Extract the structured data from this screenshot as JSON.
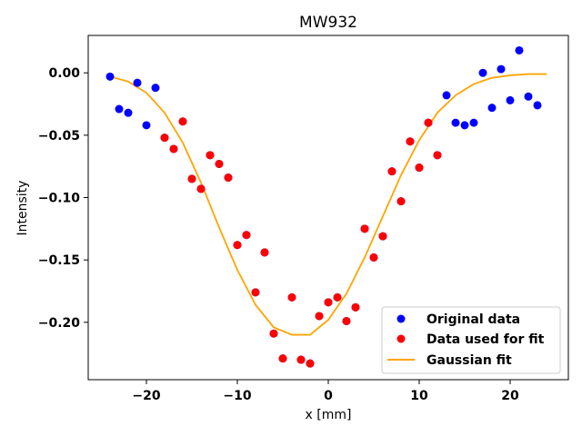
{
  "chart_data": {
    "type": "scatter",
    "title": "MW932",
    "xlabel": "x [mm]",
    "ylabel": "Intensity",
    "xlim": [
      -26.4,
      26.4
    ],
    "ylim": [
      -0.246,
      0.03
    ],
    "xticks": [
      -20,
      -10,
      0,
      10,
      20
    ],
    "xtick_labels": [
      "−20",
      "−10",
      "0",
      "10",
      "20"
    ],
    "yticks": [
      0.0,
      -0.05,
      -0.1,
      -0.15,
      -0.2
    ],
    "ytick_labels": [
      "0.00",
      "−0.05",
      "−0.10",
      "−0.15",
      "−0.20"
    ],
    "legend_position": "lower-right",
    "grid": false,
    "series": [
      {
        "name": "Original data",
        "kind": "scatter",
        "color": "#0000ff",
        "points": [
          [
            -24,
            -0.003
          ],
          [
            -23,
            -0.029
          ],
          [
            -22,
            -0.032
          ],
          [
            -21,
            -0.008
          ],
          [
            -20,
            -0.042
          ],
          [
            -19,
            -0.012
          ],
          [
            -18,
            -0.052
          ],
          [
            -17,
            -0.061
          ],
          [
            -16,
            -0.039
          ],
          [
            -15,
            -0.085
          ],
          [
            -14,
            -0.093
          ],
          [
            -13,
            -0.066
          ],
          [
            -12,
            -0.073
          ],
          [
            -11,
            -0.084
          ],
          [
            -10,
            -0.138
          ],
          [
            -9,
            -0.13
          ],
          [
            -8,
            -0.176
          ],
          [
            -7,
            -0.144
          ],
          [
            -6,
            -0.209
          ],
          [
            -5,
            -0.229
          ],
          [
            -4,
            -0.18
          ],
          [
            -3,
            -0.23
          ],
          [
            -2,
            -0.233
          ],
          [
            -1,
            -0.195
          ],
          [
            0,
            -0.184
          ],
          [
            1,
            -0.18
          ],
          [
            2,
            -0.199
          ],
          [
            3,
            -0.188
          ],
          [
            4,
            -0.125
          ],
          [
            5,
            -0.148
          ],
          [
            6,
            -0.131
          ],
          [
            7,
            -0.079
          ],
          [
            8,
            -0.103
          ],
          [
            9,
            -0.055
          ],
          [
            10,
            -0.076
          ],
          [
            11,
            -0.04
          ],
          [
            12,
            -0.066
          ],
          [
            13,
            -0.018
          ],
          [
            14,
            -0.04
          ],
          [
            15,
            -0.042
          ],
          [
            16,
            -0.04
          ],
          [
            17,
            0.0
          ],
          [
            18,
            -0.028
          ],
          [
            19,
            0.003
          ],
          [
            20,
            -0.022
          ],
          [
            21,
            0.018
          ],
          [
            22,
            -0.019
          ],
          [
            23,
            -0.026
          ]
        ]
      },
      {
        "name": "Data used for fit",
        "kind": "scatter",
        "color": "#ff0000",
        "points": [
          [
            -18,
            -0.052
          ],
          [
            -17,
            -0.061
          ],
          [
            -16,
            -0.039
          ],
          [
            -15,
            -0.085
          ],
          [
            -14,
            -0.093
          ],
          [
            -13,
            -0.066
          ],
          [
            -12,
            -0.073
          ],
          [
            -11,
            -0.084
          ],
          [
            -10,
            -0.138
          ],
          [
            -9,
            -0.13
          ],
          [
            -8,
            -0.176
          ],
          [
            -7,
            -0.144
          ],
          [
            -6,
            -0.209
          ],
          [
            -5,
            -0.229
          ],
          [
            -4,
            -0.18
          ],
          [
            -3,
            -0.23
          ],
          [
            -2,
            -0.233
          ],
          [
            -1,
            -0.195
          ],
          [
            0,
            -0.184
          ],
          [
            1,
            -0.18
          ],
          [
            2,
            -0.199
          ],
          [
            3,
            -0.188
          ],
          [
            4,
            -0.125
          ],
          [
            5,
            -0.148
          ],
          [
            6,
            -0.131
          ],
          [
            7,
            -0.079
          ],
          [
            8,
            -0.103
          ],
          [
            9,
            -0.055
          ],
          [
            10,
            -0.076
          ],
          [
            11,
            -0.04
          ],
          [
            12,
            -0.066
          ]
        ]
      },
      {
        "name": "Gaussian fit",
        "kind": "line",
        "color": "#ffa500",
        "points": [
          [
            -24,
            -0.003
          ],
          [
            -22,
            -0.007
          ],
          [
            -20,
            -0.016
          ],
          [
            -18,
            -0.032
          ],
          [
            -16,
            -0.056
          ],
          [
            -14,
            -0.088
          ],
          [
            -12,
            -0.124
          ],
          [
            -10,
            -0.158
          ],
          [
            -8,
            -0.186
          ],
          [
            -6,
            -0.204
          ],
          [
            -4,
            -0.21
          ],
          [
            -2,
            -0.21
          ],
          [
            0,
            -0.198
          ],
          [
            2,
            -0.177
          ],
          [
            4,
            -0.148
          ],
          [
            6,
            -0.115
          ],
          [
            8,
            -0.082
          ],
          [
            10,
            -0.054
          ],
          [
            12,
            -0.032
          ],
          [
            14,
            -0.018
          ],
          [
            16,
            -0.009
          ],
          [
            18,
            -0.004
          ],
          [
            20,
            -0.002
          ],
          [
            22,
            -0.001
          ],
          [
            24,
            -0.001
          ]
        ]
      }
    ]
  }
}
